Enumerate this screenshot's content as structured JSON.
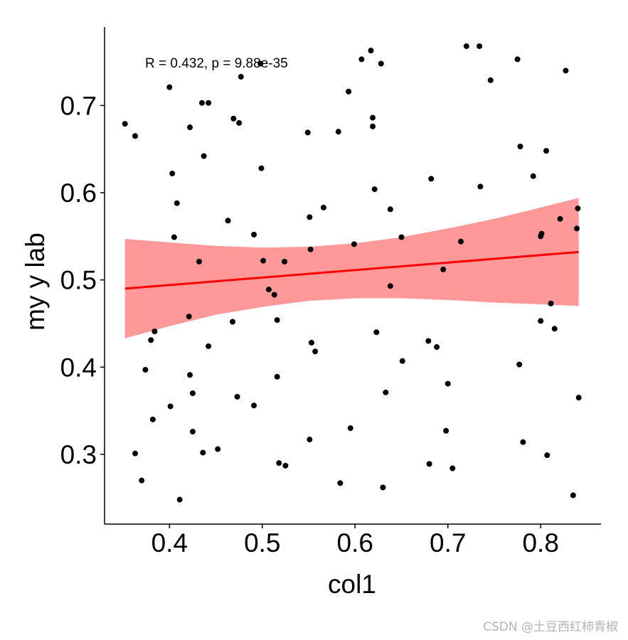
{
  "chart_data": {
    "type": "scatter",
    "title": "",
    "xlabel": "col1",
    "ylabel": "my y lab",
    "xlim": [
      0.33,
      0.865
    ],
    "ylim": [
      0.22,
      0.79
    ],
    "x_ticks": [
      0.4,
      0.5,
      0.6,
      0.7,
      0.8
    ],
    "x_tick_labels": [
      "0.4",
      "0.5",
      "0.6",
      "0.7",
      "0.8"
    ],
    "y_ticks": [
      0.3,
      0.4,
      0.5,
      0.6,
      0.7
    ],
    "y_tick_labels": [
      "0.3",
      "0.4",
      "0.5",
      "0.6",
      "0.7"
    ],
    "grid": false,
    "annotation": "R = 0.432, p = 9.88e-35",
    "point_color": "#000000",
    "points": [
      [
        0.352,
        0.679
      ],
      [
        0.363,
        0.665
      ],
      [
        0.363,
        0.301
      ],
      [
        0.37,
        0.27
      ],
      [
        0.374,
        0.397
      ],
      [
        0.38,
        0.431
      ],
      [
        0.382,
        0.34
      ],
      [
        0.384,
        0.441
      ],
      [
        0.4,
        0.721
      ],
      [
        0.401,
        0.355
      ],
      [
        0.403,
        0.622
      ],
      [
        0.405,
        0.549
      ],
      [
        0.408,
        0.588
      ],
      [
        0.411,
        0.248
      ],
      [
        0.421,
        0.458
      ],
      [
        0.422,
        0.391
      ],
      [
        0.422,
        0.675
      ],
      [
        0.425,
        0.37
      ],
      [
        0.425,
        0.326
      ],
      [
        0.432,
        0.521
      ],
      [
        0.435,
        0.703
      ],
      [
        0.436,
        0.302
      ],
      [
        0.437,
        0.642
      ],
      [
        0.442,
        0.703
      ],
      [
        0.442,
        0.424
      ],
      [
        0.452,
        0.306
      ],
      [
        0.463,
        0.568
      ],
      [
        0.468,
        0.452
      ],
      [
        0.469,
        0.685
      ],
      [
        0.473,
        0.366
      ],
      [
        0.475,
        0.68
      ],
      [
        0.477,
        0.733
      ],
      [
        0.491,
        0.552
      ],
      [
        0.491,
        0.356
      ],
      [
        0.498,
        0.748
      ],
      [
        0.499,
        0.628
      ],
      [
        0.501,
        0.522
      ],
      [
        0.507,
        0.489
      ],
      [
        0.513,
        0.483
      ],
      [
        0.516,
        0.389
      ],
      [
        0.516,
        0.454
      ],
      [
        0.518,
        0.29
      ],
      [
        0.524,
        0.521
      ],
      [
        0.525,
        0.287
      ],
      [
        0.549,
        0.669
      ],
      [
        0.551,
        0.317
      ],
      [
        0.551,
        0.572
      ],
      [
        0.552,
        0.535
      ],
      [
        0.553,
        0.428
      ],
      [
        0.557,
        0.418
      ],
      [
        0.566,
        0.583
      ],
      [
        0.582,
        0.67
      ],
      [
        0.584,
        0.267
      ],
      [
        0.593,
        0.716
      ],
      [
        0.595,
        0.33
      ],
      [
        0.599,
        0.541
      ],
      [
        0.607,
        0.753
      ],
      [
        0.617,
        0.763
      ],
      [
        0.619,
        0.686
      ],
      [
        0.619,
        0.676
      ],
      [
        0.621,
        0.604
      ],
      [
        0.623,
        0.44
      ],
      [
        0.628,
        0.748
      ],
      [
        0.63,
        0.262
      ],
      [
        0.633,
        0.371
      ],
      [
        0.638,
        0.581
      ],
      [
        0.638,
        0.493
      ],
      [
        0.65,
        0.549
      ],
      [
        0.651,
        0.407
      ],
      [
        0.679,
        0.43
      ],
      [
        0.68,
        0.289
      ],
      [
        0.682,
        0.616
      ],
      [
        0.688,
        0.423
      ],
      [
        0.695,
        0.512
      ],
      [
        0.698,
        0.327
      ],
      [
        0.7,
        0.381
      ],
      [
        0.705,
        0.284
      ],
      [
        0.714,
        0.544
      ],
      [
        0.72,
        0.768
      ],
      [
        0.734,
        0.768
      ],
      [
        0.735,
        0.607
      ],
      [
        0.746,
        0.729
      ],
      [
        0.775,
        0.753
      ],
      [
        0.777,
        0.403
      ],
      [
        0.778,
        0.653
      ],
      [
        0.781,
        0.314
      ],
      [
        0.792,
        0.619
      ],
      [
        0.8,
        0.55
      ],
      [
        0.8,
        0.453
      ],
      [
        0.801,
        0.553
      ],
      [
        0.806,
        0.648
      ],
      [
        0.807,
        0.299
      ],
      [
        0.811,
        0.473
      ],
      [
        0.815,
        0.444
      ],
      [
        0.821,
        0.57
      ],
      [
        0.827,
        0.74
      ],
      [
        0.835,
        0.253
      ],
      [
        0.839,
        0.559
      ],
      [
        0.84,
        0.582
      ],
      [
        0.841,
        0.365
      ]
    ],
    "fit_line": {
      "type": "linear",
      "color": "#ff0000",
      "x": [
        0.352,
        0.841
      ],
      "y": [
        0.49,
        0.532
      ]
    },
    "confidence_band": {
      "color": "#ff9999",
      "x": [
        0.352,
        0.4,
        0.45,
        0.5,
        0.55,
        0.6,
        0.65,
        0.7,
        0.75,
        0.8,
        0.841
      ],
      "upper": [
        0.547,
        0.543,
        0.539,
        0.537,
        0.538,
        0.542,
        0.549,
        0.559,
        0.57,
        0.583,
        0.594
      ],
      "lower": [
        0.433,
        0.447,
        0.46,
        0.469,
        0.476,
        0.479,
        0.479,
        0.477,
        0.474,
        0.472,
        0.47
      ]
    }
  },
  "watermark": "CSDN @土豆西红柿青椒"
}
